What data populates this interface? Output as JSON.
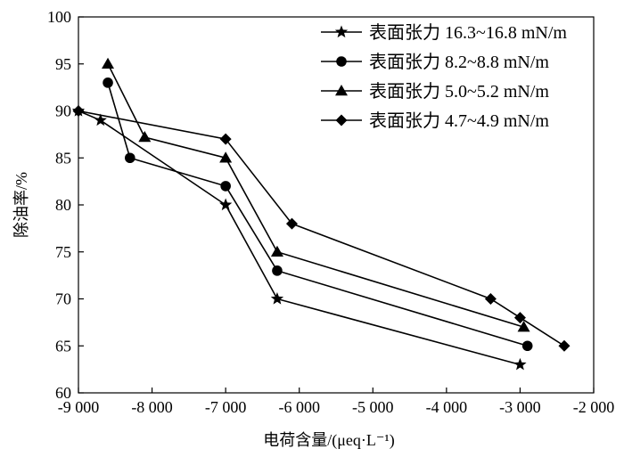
{
  "chart_data": {
    "type": "line",
    "title": "",
    "xlabel": "电荷含量/(μeq·L⁻¹)",
    "ylabel": "除油率/%",
    "xlim": [
      -9000,
      -2000
    ],
    "ylim": [
      60,
      100
    ],
    "x_ticks": [
      -9000,
      -8000,
      -7000,
      -6000,
      -5000,
      -4000,
      -3000,
      -2000
    ],
    "x_tick_labels": [
      "-9 000",
      "-8 000",
      "-7 000",
      "-6 000",
      "-5 000",
      "-4 000",
      "-3 000",
      "-2 000"
    ],
    "y_ticks": [
      60,
      65,
      70,
      75,
      80,
      85,
      90,
      95,
      100
    ],
    "y_tick_labels": [
      "60",
      "65",
      "70",
      "75",
      "80",
      "85",
      "90",
      "95",
      "100"
    ],
    "grid": false,
    "legend_position": "top-right",
    "series": [
      {
        "name": "表面张力 16.3~16.8 mN/m",
        "marker": "star",
        "x": [
          -9000,
          -8700,
          -7000,
          -6300,
          -3000
        ],
        "y": [
          90,
          89,
          80,
          70,
          63
        ]
      },
      {
        "name": "表面张力 8.2~8.8 mN/m",
        "marker": "circle",
        "x": [
          -8600,
          -8300,
          -7000,
          -6300,
          -2900
        ],
        "y": [
          93,
          85,
          82,
          73,
          65
        ]
      },
      {
        "name": "表面张力 5.0~5.2 mN/m",
        "marker": "triangle",
        "x": [
          -8600,
          -8100,
          -7000,
          -6300,
          -2950
        ],
        "y": [
          95,
          87.2,
          85,
          75,
          67
        ]
      },
      {
        "name": "表面张力 4.7~4.9 mN/m",
        "marker": "diamond",
        "x": [
          -9000,
          -7000,
          -6100,
          -3400,
          -3000,
          -2400
        ],
        "y": [
          90,
          87,
          78,
          70,
          68,
          65
        ]
      }
    ]
  }
}
